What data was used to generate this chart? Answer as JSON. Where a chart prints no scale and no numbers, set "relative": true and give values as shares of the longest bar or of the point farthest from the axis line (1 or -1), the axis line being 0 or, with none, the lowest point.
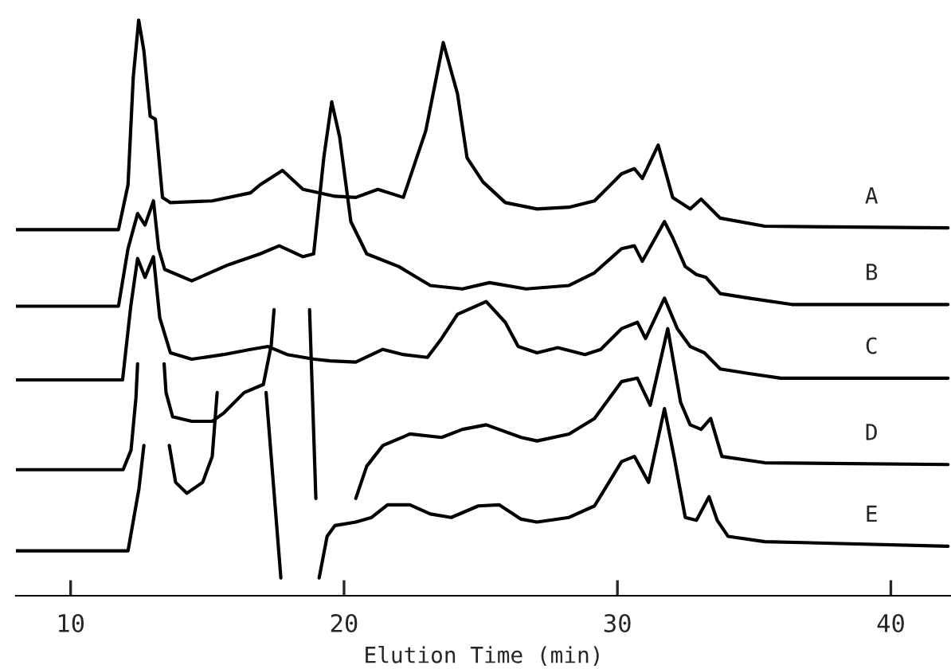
{
  "chart_data": {
    "type": "line",
    "relative": true,
    "xlabel": "Elution Time (min)",
    "xlim": [
      8,
      42.2
    ],
    "xticks": [
      10,
      20,
      30,
      40
    ],
    "grid": false,
    "legend": false,
    "line_style": "solid",
    "series": [
      {
        "name": "A",
        "color": "#000000",
        "x": [
          8.02,
          11.75,
          12.1,
          12.29,
          12.49,
          12.68,
          12.91,
          13.1,
          13.36,
          13.65,
          15.18,
          16.58,
          16.93,
          17.75,
          18.5,
          19.67,
          20.43,
          21.24,
          22.17,
          22.99,
          23.63,
          24.15,
          24.5,
          25.08,
          25.9,
          27.06,
          28.23,
          29.16,
          30.15,
          30.62,
          30.91,
          31.49,
          32.02,
          32.66,
          33.06,
          33.76,
          35.39,
          42.09
        ],
        "values": [
          0.636,
          0.636,
          0.714,
          0.9,
          1.0,
          0.947,
          0.833,
          0.828,
          0.692,
          0.683,
          0.686,
          0.7,
          0.714,
          0.739,
          0.706,
          0.694,
          0.692,
          0.706,
          0.692,
          0.808,
          0.961,
          0.872,
          0.761,
          0.719,
          0.683,
          0.672,
          0.675,
          0.686,
          0.733,
          0.742,
          0.725,
          0.783,
          0.692,
          0.672,
          0.689,
          0.656,
          0.642,
          0.639
        ]
      },
      {
        "name": "B",
        "color": "#000000",
        "x": [
          8.02,
          11.75,
          12.1,
          12.45,
          12.72,
          13.03,
          13.22,
          13.44,
          14.43,
          15.77,
          16.93,
          17.63,
          18.5,
          18.89,
          19.26,
          19.55,
          19.84,
          20.25,
          20.83,
          22.0,
          23.16,
          24.33,
          25.32,
          26.66,
          28.23,
          29.16,
          30.15,
          30.62,
          30.91,
          31.72,
          32.02,
          32.48,
          32.89,
          33.24,
          33.76,
          34.81,
          36.38,
          42.09
        ],
        "values": [
          0.503,
          0.503,
          0.603,
          0.664,
          0.644,
          0.686,
          0.603,
          0.567,
          0.547,
          0.575,
          0.594,
          0.608,
          0.589,
          0.594,
          0.761,
          0.858,
          0.797,
          0.65,
          0.594,
          0.572,
          0.539,
          0.533,
          0.544,
          0.533,
          0.539,
          0.561,
          0.603,
          0.608,
          0.581,
          0.65,
          0.622,
          0.572,
          0.558,
          0.553,
          0.525,
          0.517,
          0.506,
          0.506
        ]
      },
      {
        "name": "C",
        "color": "#000000",
        "x": [
          8.02,
          11.9,
          12.2,
          12.45,
          12.72,
          13.03,
          13.26,
          13.65,
          14.43,
          15.59,
          16.58,
          17.22,
          17.92,
          18.91,
          19.49,
          20.43,
          21.42,
          22.17,
          23.05,
          23.57,
          24.15,
          25.2,
          25.9,
          26.37,
          27.06,
          27.82,
          28.81,
          29.39,
          30.15,
          30.73,
          31.03,
          31.72,
          32.19,
          32.66,
          33.18,
          33.76,
          34.81,
          35.98,
          42.09
        ],
        "values": [
          0.375,
          0.375,
          0.503,
          0.586,
          0.553,
          0.589,
          0.483,
          0.422,
          0.411,
          0.419,
          0.428,
          0.433,
          0.419,
          0.411,
          0.408,
          0.406,
          0.428,
          0.419,
          0.414,
          0.447,
          0.489,
          0.511,
          0.475,
          0.433,
          0.422,
          0.431,
          0.419,
          0.428,
          0.464,
          0.475,
          0.447,
          0.517,
          0.464,
          0.433,
          0.422,
          0.394,
          0.386,
          0.378,
          0.378
        ]
      },
      {
        "name": "D",
        "color": "#000000",
        "x": [
          8.02,
          11.92,
          12.21,
          12.39,
          12.45,
          12.9,
          13.42,
          13.49,
          13.73,
          14.43,
          15.18,
          15.59,
          16.35,
          17.05,
          17.34,
          17.44,
          18.1,
          18.74,
          18.97,
          19.7,
          20.43,
          20.83,
          21.42,
          22.41,
          23.57,
          24.33,
          25.2,
          26.48,
          27.06,
          28.23,
          29.16,
          30.15,
          30.73,
          31.2,
          31.84,
          32.31,
          32.66,
          33.06,
          33.41,
          33.82,
          35.39,
          42.09
        ],
        "values": [
          0.219,
          0.219,
          0.253,
          0.344,
          0.403,
          null,
          0.403,
          0.353,
          0.311,
          0.303,
          0.303,
          0.317,
          0.353,
          0.367,
          0.436,
          0.497,
          null,
          0.497,
          0.169,
          null,
          0.169,
          0.225,
          0.261,
          0.281,
          0.275,
          0.289,
          0.297,
          0.275,
          0.269,
          0.281,
          0.308,
          0.372,
          0.378,
          0.331,
          0.464,
          0.336,
          0.297,
          0.289,
          0.308,
          0.242,
          0.231,
          0.228
        ]
      },
      {
        "name": "E",
        "color": "#000000",
        "x": [
          8.02,
          12.1,
          12.5,
          12.68,
          13.0,
          13.61,
          13.84,
          14.25,
          14.83,
          15.18,
          15.36,
          16.0,
          17.15,
          17.69,
          18.2,
          19.09,
          19.38,
          19.67,
          20.43,
          21.01,
          21.59,
          22.41,
          23.16,
          23.92,
          24.91,
          25.67,
          26.48,
          27.06,
          28.23,
          29.16,
          30.15,
          30.62,
          31.14,
          31.72,
          32.07,
          32.48,
          32.89,
          33.35,
          33.65,
          34.05,
          35.39,
          42.09
        ],
        "values": [
          0.078,
          0.078,
          0.186,
          0.261,
          null,
          0.261,
          0.197,
          0.178,
          0.197,
          0.242,
          0.353,
          null,
          0.353,
          0.031,
          null,
          0.031,
          0.103,
          0.122,
          0.128,
          0.136,
          0.158,
          0.158,
          0.142,
          0.136,
          0.156,
          0.158,
          0.133,
          0.128,
          0.136,
          0.156,
          0.233,
          0.242,
          0.197,
          0.325,
          0.242,
          0.136,
          0.131,
          0.172,
          0.131,
          0.103,
          0.094,
          0.086
        ]
      }
    ]
  }
}
